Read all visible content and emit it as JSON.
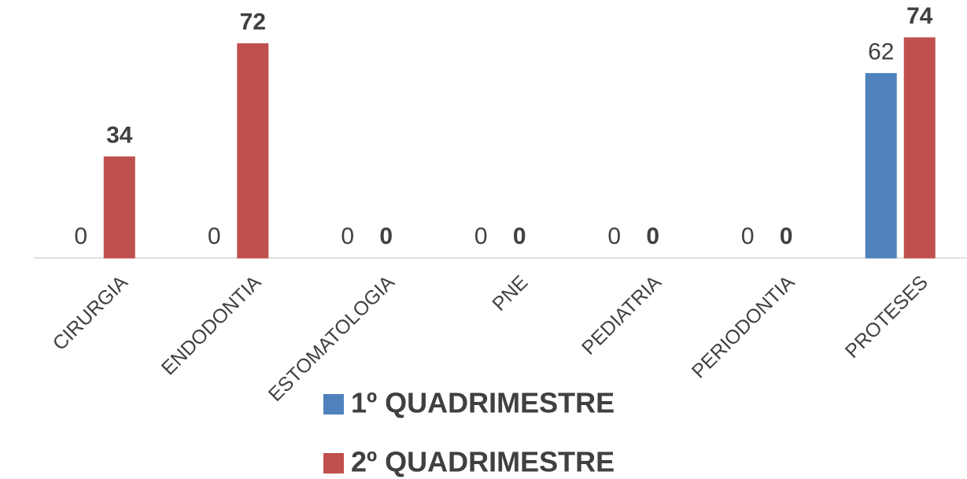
{
  "chart_data": {
    "type": "bar",
    "categories": [
      "CIRURGIA",
      "ENDODONTIA",
      "ESTOMATOLOGIA",
      "PNE",
      "PEDIATRIA",
      "PERIODONTIA",
      "PROTESES"
    ],
    "series": [
      {
        "name": "1º QUADRIMESTRE",
        "color": "#4f81bd",
        "values": [
          0,
          0,
          0,
          0,
          0,
          0,
          62
        ]
      },
      {
        "name": "2º QUADRIMESTRE",
        "color": "#c0504d",
        "values": [
          34,
          72,
          0,
          0,
          0,
          0,
          74
        ]
      }
    ],
    "legend": "bottom"
  }
}
